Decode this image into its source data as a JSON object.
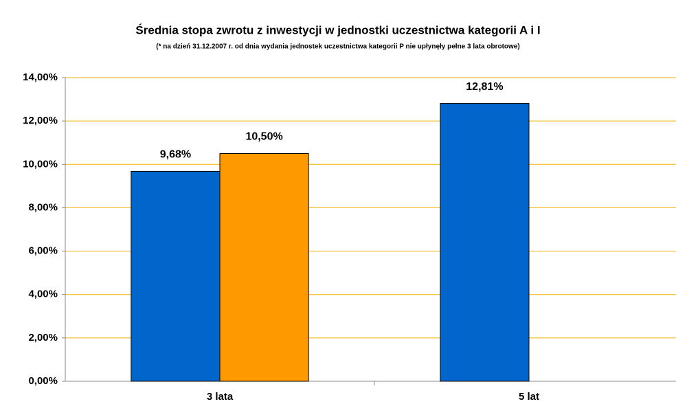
{
  "chart_data": {
    "type": "bar",
    "title": "Średnia stopa zwrotu z inwestycji w jednostki uczestnictwa kategorii A i I",
    "subtitle": "(* na dzień 31.12.2007 r. od dnia wydania jednostek uczestnictwa kategorii P nie upłynęły pełne 3 lata obrotowe)",
    "categories": [
      "3 lata",
      "5 lat"
    ],
    "series": [
      {
        "color": "#0066cc",
        "values": [
          9.68,
          12.81
        ],
        "value_labels": [
          "9,68%",
          "12,81%"
        ]
      },
      {
        "color": "#ff9900",
        "values": [
          10.5,
          null
        ],
        "value_labels": [
          "10,50%",
          null
        ]
      }
    ],
    "ylim": [
      0,
      14
    ],
    "yticks": [
      {
        "value": 0,
        "label": "0,00%"
      },
      {
        "value": 2,
        "label": "2,00%"
      },
      {
        "value": 4,
        "label": "4,00%"
      },
      {
        "value": 6,
        "label": "6,00%"
      },
      {
        "value": 8,
        "label": "8,00%"
      },
      {
        "value": 10,
        "label": "10,00%"
      },
      {
        "value": 12,
        "label": "12,00%"
      },
      {
        "value": 14,
        "label": "14,00%"
      }
    ],
    "grid": true,
    "grid_color": "#f0b000"
  }
}
